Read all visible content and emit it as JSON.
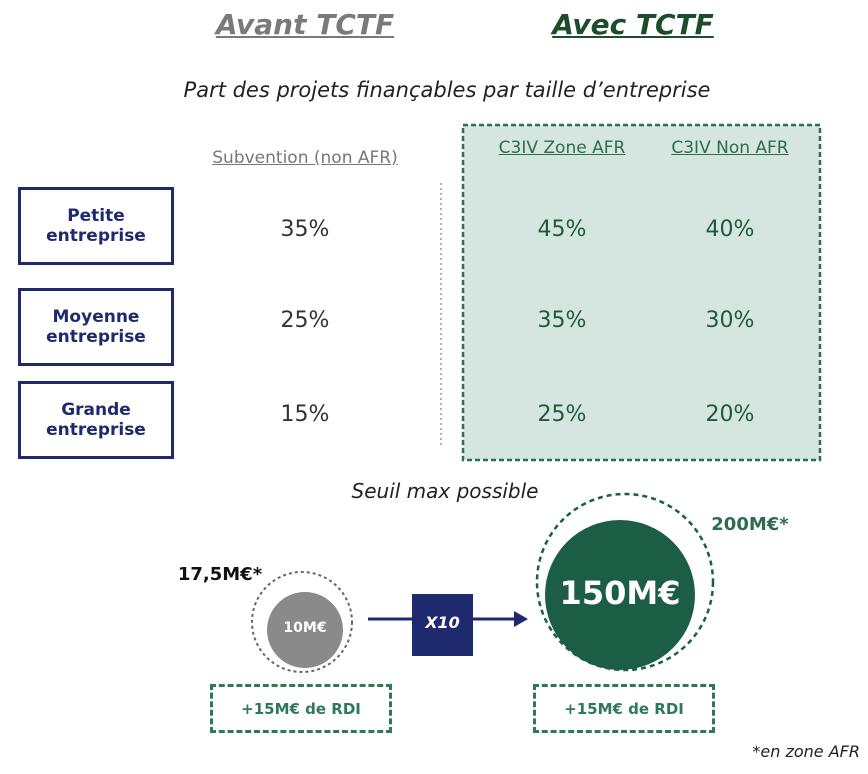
{
  "header": {
    "before": "Avant TCTF",
    "after": "Avec TCTF"
  },
  "subtitle": "Part des projets finançables par taille d’entreprise",
  "table": {
    "columns": [
      "Subvention (non AFR)",
      "C3IV Zone AFR",
      "C3IV Non AFR"
    ],
    "rows": [
      {
        "label": "Petite entreprise",
        "values": [
          "35%",
          "45%",
          "40%"
        ]
      },
      {
        "label": "Moyenne entreprise",
        "values": [
          "25%",
          "35%",
          "30%"
        ]
      },
      {
        "label": "Grande entreprise",
        "values": [
          "15%",
          "25%",
          "20%"
        ]
      }
    ]
  },
  "threshold": {
    "title": "Seuil max possible",
    "before": {
      "amount": "10M€",
      "max": "17,5M€*",
      "note": "+15M€ de RDI"
    },
    "multiplier": "X10",
    "after": {
      "amount": "150M€",
      "max": "200M€*",
      "note": "+15M€ de RDI"
    },
    "footnote": "*en zone AFR"
  }
}
